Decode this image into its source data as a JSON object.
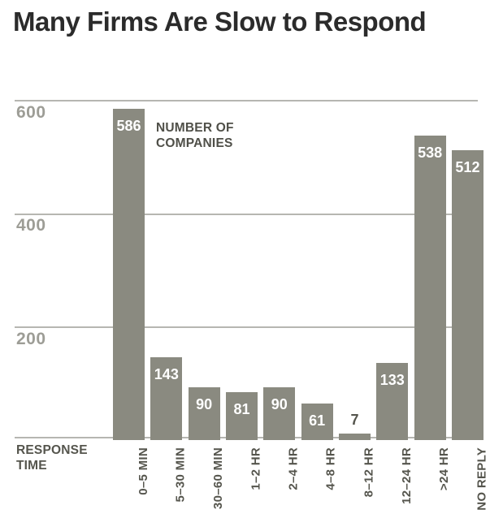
{
  "page_title": "Many Firms Are Slow to Respond",
  "chart_data": {
    "type": "bar",
    "title": "Many Firms Are Slow to Respond",
    "annotation": "NUMBER OF COMPANIES",
    "xlabel": "RESPONSE TIME",
    "ylabel": "",
    "categories": [
      "0–5 MIN",
      "5–30 MIN",
      "30–60 MIN",
      "1–2 HR",
      "2–4 HR",
      "4–8 HR",
      "8–12 HR",
      "12–24 HR",
      ">24 HR",
      "NO REPLY"
    ],
    "values": [
      586,
      143,
      90,
      81,
      90,
      61,
      7,
      133,
      538,
      512
    ],
    "yticks": [
      "600",
      "400",
      "200"
    ],
    "ylim": [
      0,
      600
    ],
    "grid": "horizontal",
    "legend": "none",
    "colors": {
      "bar": "#8a8a80",
      "gridline": "#b6b6b1",
      "ytick_label": "#9d9d96",
      "value_label_inside": "#ffffff",
      "value_label_outside": "#55554d",
      "dark_text": "#55554d",
      "title_text": "#2b2b2b"
    }
  }
}
